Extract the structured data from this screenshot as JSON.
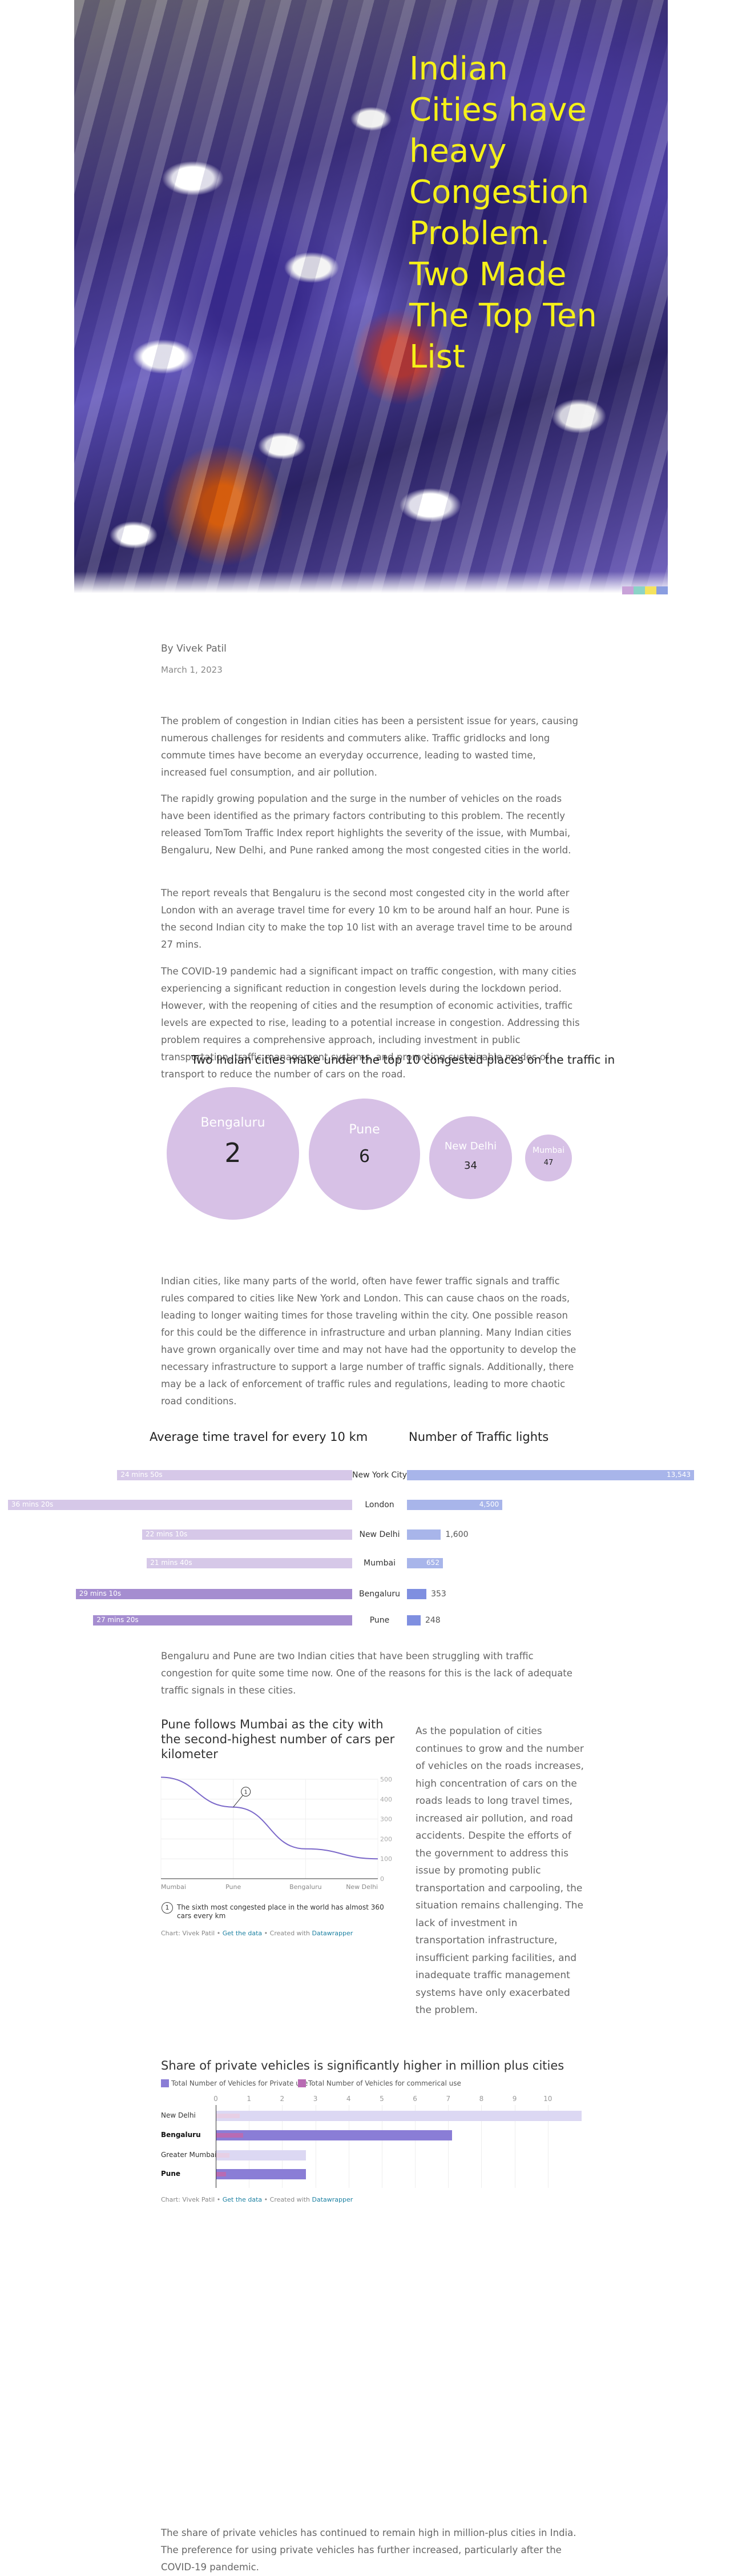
{
  "hero": {
    "title": "Indian Cities have heavy Congestion Problem. Two Made The Top Ten List"
  },
  "meta": {
    "author": "By Vivek Patil",
    "date": "March 1, 2023"
  },
  "paragraphs": {
    "p1": "The problem of congestion in Indian cities has been a persistent issue for years, causing numerous challenges for residents and commuters alike. Traffic gridlocks and long commute times have become an everyday occurrence, leading to wasted time, increased fuel consumption, and air pollution.",
    "p2": "The rapidly growing population and the surge in the number of vehicles on the roads have been identified as the primary factors contributing to this problem. The recently released TomTom Traffic Index report highlights the severity of the issue, with Mumbai, Bengaluru, New Delhi, and Pune ranked among the most congested cities in the world.",
    "p3": "The report reveals that Bengaluru is the second most congested city in the world after London with an average travel time for every 10 km to be around half an hour. Pune is the second Indian city to make the top 10 list with an average travel time to be around 27 mins.",
    "p4": "The COVID-19 pandemic had a significant impact on traffic congestion, with many cities experiencing a significant reduction in congestion levels during the lockdown period. However, with the reopening of cities and the resumption of economic activities, traffic levels are expected to rise, leading to a potential increase in congestion. Addressing this problem requires a comprehensive approach, including investment in public transportation, traffic management systems, and promoting sustainable modes of transport to reduce the number of cars on the road.",
    "p5": "Indian cities, like many parts of the world, often have fewer traffic signals and traffic rules compared to cities like New York and London. This can cause chaos on the roads, leading to longer waiting times for those traveling within the city. One possible reason for this could be the difference in infrastructure and urban planning. Many Indian cities have grown organically over time and may not have had the opportunity to develop the necessary infrastructure to support a large number of traffic signals. Additionally, there may be a lack of enforcement of traffic rules and regulations, leading to more chaotic road conditions.",
    "p6": "Bengaluru and Pune are two Indian cities that have been struggling with traffic congestion for quite some time now. One of the reasons for this is the lack of adequate traffic signals in these cities.",
    "side": "As the population of cities continues to grow and the number of vehicles on the roads increases, high concentration of cars on the roads leads to long travel times, increased air pollution, and road accidents. Despite the efforts of the government to address this issue by promoting public transportation and carpooling, the situation remains challenging. The lack of investment in transportation infrastructure, insufficient parking facilities, and inadequate traffic management systems have only exacerbated the problem.",
    "p7": "The share of private vehicles has continued to remain high in million-plus cities in India. The preference for using private vehicles has further increased, particularly after the COVID-19 pandemic."
  },
  "chart_data": [
    {
      "type": "bubble",
      "title": "Two Indian cities make under the top 10 congested places on the traffic in",
      "items": [
        {
          "name": "Bengaluru",
          "value": 2
        },
        {
          "name": "Pune",
          "value": 6
        },
        {
          "name": "New Delhi",
          "value": 34
        },
        {
          "name": "Mumbai",
          "value": 47
        }
      ]
    },
    {
      "type": "bar",
      "title": "Average time travel for every 10 km",
      "categories": [
        "New York City",
        "London",
        "New Delhi",
        "Mumbai",
        "Bengaluru",
        "Pune"
      ],
      "values_minutes": [
        24.8,
        36.33,
        22.17,
        21.67,
        29.17,
        27.33
      ],
      "labels": [
        "24 mins 50s",
        "36 mins 20s",
        "22 mins 10s",
        "21 mins 40s",
        "29 mins 10s",
        "27 mins 20s"
      ],
      "highlight": [
        "Bengaluru",
        "Pune"
      ]
    },
    {
      "type": "bar",
      "title": "Number of Traffic lights",
      "categories": [
        "New York City",
        "London",
        "New Delhi",
        "Mumbai",
        "Bengaluru",
        "Pune"
      ],
      "values": [
        13543,
        4500,
        1600,
        652,
        353,
        248
      ],
      "labels": [
        "13,543",
        "4,500",
        "1,600",
        "652",
        "353",
        "248"
      ]
    },
    {
      "type": "line",
      "title": "Pune follows Mumbai as the city with the second-highest number of cars per kilometer",
      "categories": [
        "Mumbai",
        "Pune",
        "Bengaluru",
        "New Delhi"
      ],
      "values": [
        510,
        360,
        150,
        100
      ],
      "ylim": [
        0,
        500
      ],
      "yticks": [
        "500",
        "400",
        "300",
        "200",
        "100",
        "0"
      ],
      "annotation_marker": "1",
      "annotation": "The sixth most congested place in the world has almost 360 cars every km"
    },
    {
      "type": "bar",
      "title": "Share of private vehicles is significantly higher in million plus cities",
      "categories": [
        "New Delhi",
        "Bengaluru",
        "Greater Mumbai",
        "Pune"
      ],
      "series": [
        {
          "name": "Total Number of Vehicles for Private use",
          "values": [
            11.0,
            7.1,
            2.7,
            2.7
          ]
        },
        {
          "name": "Total Number of Vehicles for commerical use",
          "values": [
            0.7,
            0.8,
            0.4,
            0.3
          ]
        }
      ],
      "xticks": [
        "0",
        "1",
        "2",
        "3",
        "4",
        "5",
        "6",
        "7",
        "8",
        "9",
        "10"
      ],
      "xlim": [
        0,
        11
      ]
    }
  ],
  "credits": {
    "prefix": "Chart: Vivek Patil •",
    "get_data": "Get the data",
    "mid": "• Created with",
    "tool": "Datawrapper"
  },
  "colors": {
    "title_yellow": "#f5f019",
    "bubble": "#d7c1e6",
    "bar_light": "#d6c8e8",
    "bar_highlight": "#a58dd0",
    "bar_blue": "#a8b5ea",
    "line": "#7b68c9",
    "private": "#8a7dd6",
    "commercial": "#b86bb3"
  }
}
